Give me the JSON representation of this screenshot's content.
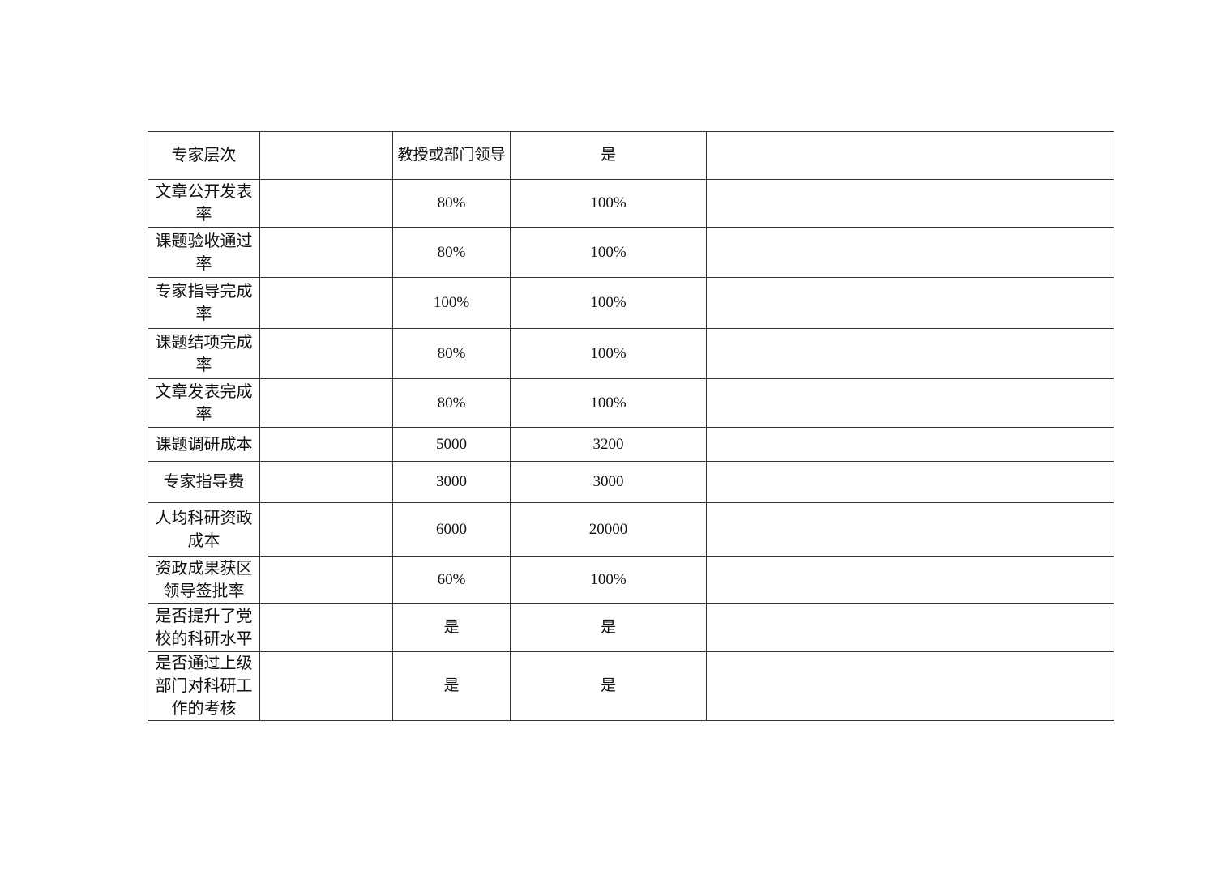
{
  "table": {
    "rows": [
      {
        "indicator": "专家层次",
        "col2": "",
        "target": "教授或部门领导",
        "actual": "是",
        "note": ""
      },
      {
        "indicator": "文章公开发表率",
        "col2": "",
        "target": "80%",
        "actual": "100%",
        "note": ""
      },
      {
        "indicator": "课题验收通过率",
        "col2": "",
        "target": "80%",
        "actual": "100%",
        "note": ""
      },
      {
        "indicator": "专家指导完成率",
        "col2": "",
        "target": "100%",
        "actual": "100%",
        "note": ""
      },
      {
        "indicator": "课题结项完成率",
        "col2": "",
        "target": "80%",
        "actual": "100%",
        "note": ""
      },
      {
        "indicator": "文章发表完成率",
        "col2": "",
        "target": "80%",
        "actual": "100%",
        "note": ""
      },
      {
        "indicator": "课题调研成本",
        "col2": "",
        "target": "5000",
        "actual": "3200",
        "note": ""
      },
      {
        "indicator": "专家指导费",
        "col2": "",
        "target": "3000",
        "actual": "3000",
        "note": ""
      },
      {
        "indicator": "人均科研资政成本",
        "col2": "",
        "target": "6000",
        "actual": "20000",
        "note": ""
      },
      {
        "indicator": "资政成果获区领导签批率",
        "col2": "",
        "target": "60%",
        "actual": "100%",
        "note": ""
      },
      {
        "indicator": "是否提升了党校的科研水平",
        "col2": "",
        "target": "是",
        "actual": "是",
        "note": ""
      },
      {
        "indicator": "是否通过上级部门对科研工作的考核",
        "col2": "",
        "target": "是",
        "actual": "是",
        "note": ""
      }
    ]
  }
}
